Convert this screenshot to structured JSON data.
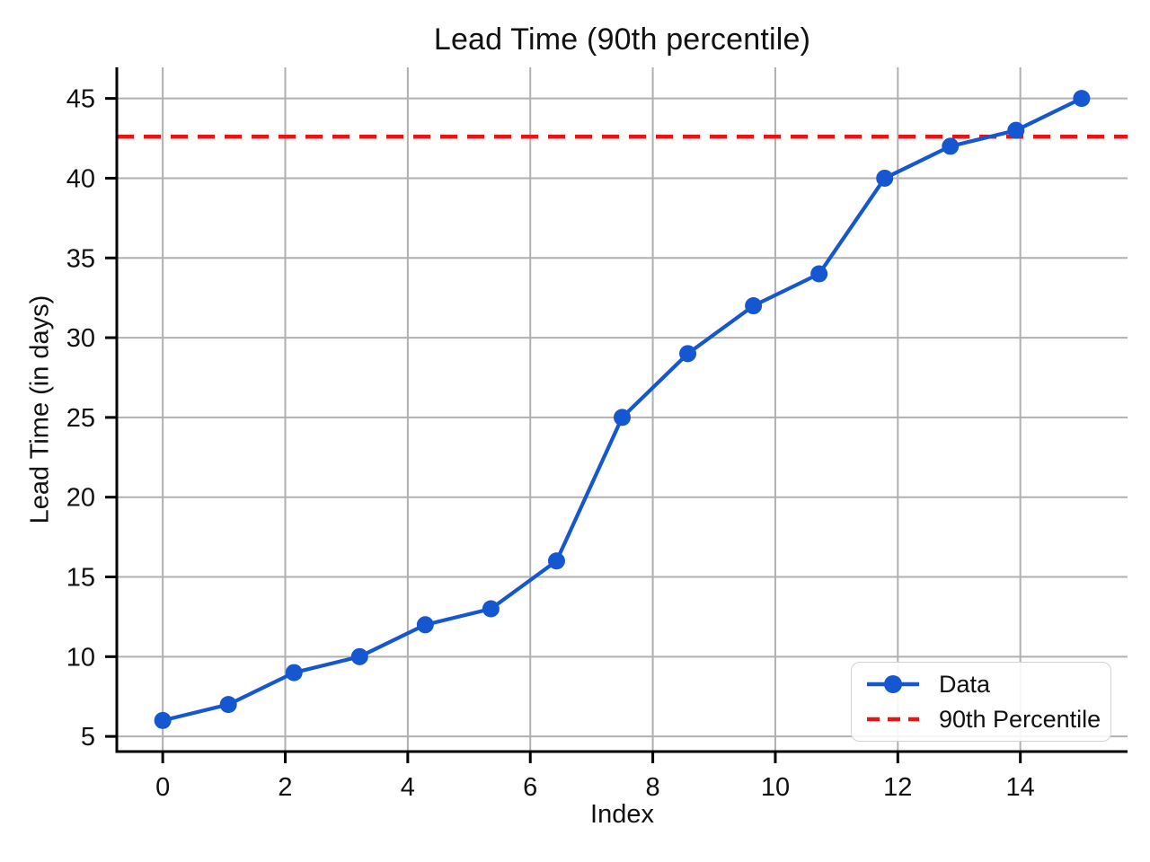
{
  "chart_data": {
    "type": "line",
    "title": "Lead Time (90th percentile)",
    "xlabel": "Index",
    "ylabel": "Lead Time (in days)",
    "x": [
      0,
      1.0714,
      2.1429,
      3.2143,
      4.2857,
      5.3571,
      6.4286,
      7.5,
      8.5714,
      9.6429,
      10.7143,
      11.7857,
      12.8571,
      13.9286,
      15
    ],
    "series": [
      {
        "name": "Data",
        "kind": "line-markers",
        "color": "#1457d1",
        "y": [
          6,
          7,
          9,
          10,
          12,
          13,
          16,
          25,
          29,
          32,
          34,
          40,
          42,
          43,
          45
        ]
      },
      {
        "name": "90th Percentile",
        "kind": "hline-dashed",
        "color": "#ea1414",
        "y_value": 42.6
      }
    ],
    "xticks": [
      0,
      2,
      4,
      6,
      8,
      10,
      12,
      14
    ],
    "yticks": [
      5,
      10,
      15,
      20,
      25,
      30,
      35,
      40,
      45
    ],
    "xlim": [
      -0.75,
      15.75
    ],
    "ylim": [
      4.05,
      46.95
    ],
    "grid": true,
    "legend_position": "lower right",
    "colors": {
      "grid": "#b0b0b0",
      "spine": "#000000",
      "text": "#111111",
      "background": "#ffffff"
    }
  }
}
